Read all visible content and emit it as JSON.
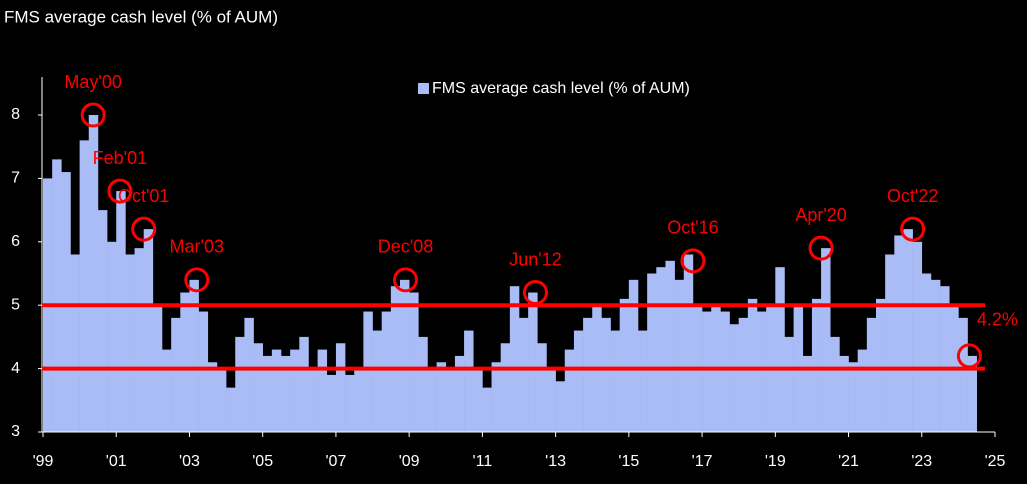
{
  "chart_data": {
    "type": "bar",
    "title": "FMS average cash level (% of AUM)",
    "x": [
      1999.0,
      1999.25,
      1999.5,
      1999.75,
      2000.0,
      2000.25,
      2000.5,
      2000.75,
      2001.0,
      2001.25,
      2001.5,
      2001.75,
      2002.0,
      2002.25,
      2002.5,
      2002.75,
      2003.0,
      2003.25,
      2003.5,
      2003.75,
      2004.0,
      2004.25,
      2004.5,
      2004.75,
      2005.0,
      2005.25,
      2005.5,
      2005.75,
      2006.0,
      2006.25,
      2006.5,
      2006.75,
      2007.0,
      2007.25,
      2007.5,
      2007.75,
      2008.0,
      2008.25,
      2008.5,
      2008.75,
      2009.0,
      2009.25,
      2009.5,
      2009.75,
      2010.0,
      2010.25,
      2010.5,
      2010.75,
      2011.0,
      2011.25,
      2011.5,
      2011.75,
      2012.0,
      2012.25,
      2012.5,
      2012.75,
      2013.0,
      2013.25,
      2013.5,
      2013.75,
      2014.0,
      2014.25,
      2014.5,
      2014.75,
      2015.0,
      2015.25,
      2015.5,
      2015.75,
      2016.0,
      2016.25,
      2016.5,
      2016.75,
      2017.0,
      2017.25,
      2017.5,
      2017.75,
      2018.0,
      2018.25,
      2018.5,
      2018.75,
      2019.0,
      2019.25,
      2019.5,
      2019.75,
      2020.0,
      2020.25,
      2020.5,
      2020.75,
      2021.0,
      2021.25,
      2021.5,
      2021.75,
      2022.0,
      2022.25,
      2022.5,
      2022.75,
      2023.0,
      2023.25,
      2023.5,
      2023.75,
      2024.0,
      2024.25
    ],
    "series": [
      {
        "name": "FMS average cash level (% of AUM)",
        "color": "#a9bcf5",
        "values": [
          7.0,
          7.3,
          7.1,
          5.8,
          7.6,
          8.0,
          6.5,
          6.0,
          6.8,
          5.8,
          5.9,
          6.2,
          5.0,
          4.3,
          4.8,
          5.2,
          5.4,
          4.9,
          4.1,
          4.0,
          3.7,
          4.5,
          4.8,
          4.4,
          4.2,
          4.3,
          4.2,
          4.3,
          4.5,
          4.0,
          4.3,
          3.9,
          4.4,
          3.9,
          4.0,
          4.9,
          4.6,
          4.9,
          5.3,
          5.4,
          5.2,
          4.5,
          4.0,
          4.1,
          4.0,
          4.2,
          4.6,
          4.0,
          3.7,
          4.1,
          4.4,
          5.3,
          4.8,
          5.2,
          4.4,
          4.0,
          3.8,
          4.3,
          4.6,
          4.8,
          5.0,
          4.8,
          4.6,
          5.1,
          5.4,
          4.6,
          5.5,
          5.6,
          5.7,
          5.4,
          5.8,
          5.0,
          4.9,
          5.0,
          4.9,
          4.7,
          4.8,
          5.1,
          4.9,
          5.0,
          5.6,
          4.5,
          5.0,
          4.2,
          5.1,
          5.9,
          4.5,
          4.2,
          4.1,
          4.3,
          4.8,
          5.1,
          5.8,
          6.1,
          6.2,
          6.0,
          5.5,
          5.4,
          5.3,
          5.0,
          4.8,
          4.2
        ]
      }
    ],
    "xlim": [
      1999,
      2025
    ],
    "xticks": [
      {
        "value": 1999,
        "label": "'99"
      },
      {
        "value": 2001,
        "label": "'01"
      },
      {
        "value": 2003,
        "label": "'03"
      },
      {
        "value": 2005,
        "label": "'05"
      },
      {
        "value": 2007,
        "label": "'07"
      },
      {
        "value": 2009,
        "label": "'09"
      },
      {
        "value": 2011,
        "label": "'11"
      },
      {
        "value": 2013,
        "label": "'13"
      },
      {
        "value": 2015,
        "label": "'15"
      },
      {
        "value": 2017,
        "label": "'17"
      },
      {
        "value": 2019,
        "label": "'19"
      },
      {
        "value": 2021,
        "label": "'21"
      },
      {
        "value": 2023,
        "label": "'23"
      },
      {
        "value": 2025,
        "label": "'25"
      }
    ],
    "ylim": [
      3,
      8.6
    ],
    "yticks": [
      3,
      4,
      5,
      6,
      7,
      8
    ],
    "reference_lines": [
      5,
      4
    ],
    "reference_color": "#ff0000",
    "annotations": [
      {
        "label": "May'00",
        "x": 2000.37,
        "y": 8.0
      },
      {
        "label": "Feb'01",
        "x": 2001.1,
        "y": 6.8
      },
      {
        "label": "Oct'01",
        "x": 2001.75,
        "y": 6.2
      },
      {
        "label": "Mar'03",
        "x": 2003.2,
        "y": 5.4
      },
      {
        "label": "Dec'08",
        "x": 2008.9,
        "y": 5.4
      },
      {
        "label": "Jun'12",
        "x": 2012.45,
        "y": 5.2
      },
      {
        "label": "Oct'16",
        "x": 2016.75,
        "y": 5.7
      },
      {
        "label": "Apr'20",
        "x": 2020.25,
        "y": 5.9
      },
      {
        "label": "Oct'22",
        "x": 2022.75,
        "y": 6.2
      },
      {
        "label": "4.2%",
        "x": 2024.3,
        "y": 4.2
      }
    ]
  }
}
